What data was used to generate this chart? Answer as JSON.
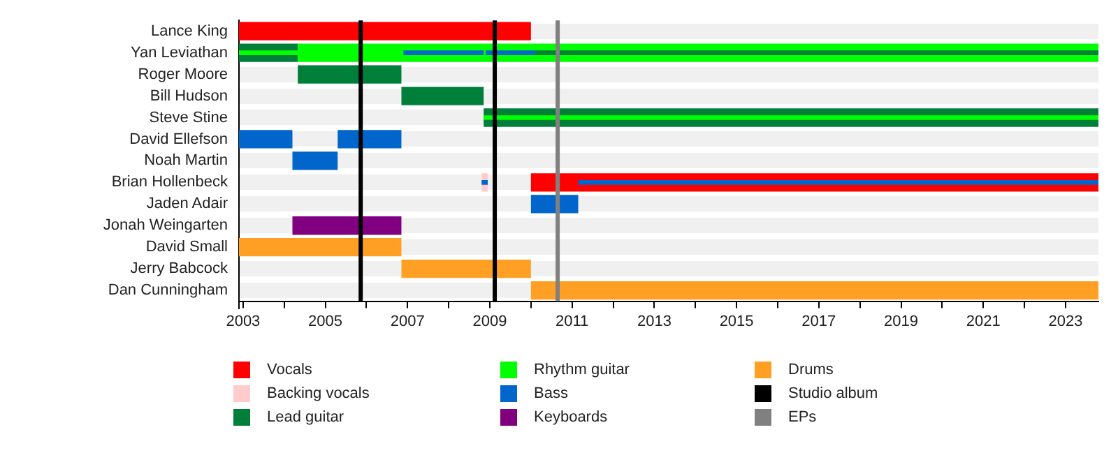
{
  "chart_data": {
    "type": "bar",
    "orientation": "horizontal",
    "grid": "y",
    "legend": "bottom",
    "categories": [
      "Lance King",
      "Yan Leviathan",
      "Roger Moore",
      "Bill Hudson",
      "Steve Stine",
      "David Ellefson",
      "Noah Martin",
      "Brian Hollenbeck",
      "Jaden Adair",
      "Jonah Weingarten",
      "David Small",
      "Jerry Babcock",
      "Dan Cunningham"
    ],
    "xlim": [
      2002.9,
      2023.8
    ],
    "xticks": [
      2003,
      {
        "value": 2004,
        "label": null
      },
      2005,
      {
        "value": 2006,
        "label": null
      },
      2007,
      {
        "value": 2008,
        "label": null
      },
      2009,
      {
        "value": 2010,
        "label": null
      },
      2011,
      {
        "value": 2012,
        "label": null
      },
      2013,
      {
        "value": 2014,
        "label": null
      },
      2015,
      {
        "value": 2016,
        "label": null
      },
      2017,
      {
        "value": 2018,
        "label": null
      },
      2019,
      {
        "value": 2020,
        "label": null
      },
      2021,
      {
        "value": 2022,
        "label": null
      },
      2023
    ],
    "series": [
      {
        "name": "Vocals",
        "color": "#ff0000",
        "base": [
          2002.9,
          null,
          null,
          null,
          null,
          null,
          null,
          2010.0,
          null,
          null,
          null,
          null,
          null
        ],
        "values": [
          7.1,
          null,
          null,
          null,
          null,
          null,
          null,
          13.8,
          null,
          null,
          null,
          null,
          null
        ]
      },
      {
        "name": "Backing vocals",
        "color": "#ffcccc",
        "base": [
          null,
          null,
          null,
          null,
          null,
          null,
          null,
          2008.8,
          null,
          null,
          null,
          null,
          null
        ],
        "values": [
          null,
          null,
          null,
          null,
          null,
          null,
          null,
          0.15,
          null,
          null,
          null,
          null,
          null
        ]
      },
      {
        "name": "Lead guitar",
        "color": "#007f3b",
        "base": [
          null,
          2002.9,
          2004.33,
          2006.85,
          2008.85,
          null,
          null,
          null,
          null,
          null,
          null,
          null,
          null
        ],
        "values": [
          null,
          1.43,
          2.52,
          2.0,
          14.95,
          null,
          null,
          null,
          null,
          null,
          null,
          null,
          null
        ]
      },
      {
        "name": "Rhythm guitar",
        "color": "#00ff00",
        "base": [
          null,
          2004.33,
          null,
          null,
          null,
          null,
          null,
          null,
          null,
          null,
          null,
          null,
          null
        ],
        "values": [
          null,
          19.47,
          null,
          null,
          null,
          null,
          null,
          null,
          null,
          null,
          null,
          null,
          null
        ]
      },
      {
        "name": "Bass",
        "color": "#0066cc",
        "base": [
          null,
          null,
          null,
          null,
          null,
          2002.9,
          2004.2,
          null,
          2010.0,
          null,
          null,
          null,
          null
        ],
        "values": [
          null,
          null,
          null,
          null,
          null,
          1.3,
          1.1,
          null,
          1.15,
          null,
          null,
          null,
          null
        ]
      },
      {
        "color": "#0066cc",
        "base": [
          null,
          null,
          null,
          null,
          null,
          2005.3,
          null,
          null,
          null,
          null,
          null,
          null,
          null
        ],
        "values": [
          null,
          null,
          null,
          null,
          null,
          1.55,
          null,
          null,
          null,
          null,
          null,
          null,
          null
        ]
      },
      {
        "name": "Keyboards",
        "color": "#800080",
        "base": [
          null,
          null,
          null,
          null,
          null,
          null,
          null,
          null,
          null,
          2004.2,
          null,
          null,
          null
        ],
        "values": [
          null,
          null,
          null,
          null,
          null,
          null,
          null,
          null,
          null,
          2.65,
          null,
          null,
          null
        ]
      },
      {
        "name": "Drums",
        "color": "#ffa024",
        "base": [
          null,
          null,
          null,
          null,
          null,
          null,
          null,
          null,
          null,
          null,
          2002.9,
          2006.85,
          2010.0
        ],
        "values": [
          null,
          null,
          null,
          null,
          null,
          null,
          null,
          null,
          null,
          null,
          3.95,
          3.15,
          13.8
        ]
      },
      {
        "color": "#00ff00",
        "base": [
          null,
          2002.9,
          null,
          null,
          2008.85,
          null,
          null,
          null,
          null,
          null,
          null,
          null,
          null
        ],
        "values": [
          null,
          1.43,
          null,
          null,
          14.95,
          null,
          null,
          null,
          null,
          null,
          null,
          null,
          null
        ]
      },
      {
        "color": "#0066cc",
        "base": [
          null,
          2006.9,
          null,
          null,
          null,
          null,
          null,
          2011.15,
          null,
          null,
          null,
          null,
          null
        ],
        "values": [
          null,
          1.95,
          null,
          null,
          null,
          null,
          null,
          12.65,
          null,
          null,
          null,
          null,
          null
        ]
      },
      {
        "color": "#0066cc",
        "base": [
          null,
          2008.9,
          null,
          null,
          null,
          null,
          null,
          2008.8,
          null,
          null,
          null,
          null,
          null
        ],
        "values": [
          null,
          1.2,
          null,
          null,
          null,
          null,
          null,
          0.15,
          null,
          null,
          null,
          null,
          null
        ]
      },
      {
        "color": "#007f3b",
        "base": [
          null,
          2010.1,
          null,
          null,
          null,
          null,
          null,
          null,
          null,
          null,
          null,
          null,
          null
        ],
        "values": [
          null,
          13.7,
          null,
          null,
          null,
          null,
          null,
          null,
          null,
          null,
          null,
          null,
          null
        ]
      }
    ],
    "ref_lines": [
      {
        "axis": "x",
        "value": 2005.86,
        "label": "Studio album",
        "color": "#000000"
      },
      {
        "axis": "x",
        "value": 2009.12,
        "color": "#000000"
      },
      {
        "axis": "x",
        "value": 2010.65,
        "label": "EPs",
        "color": "#808080"
      }
    ]
  }
}
